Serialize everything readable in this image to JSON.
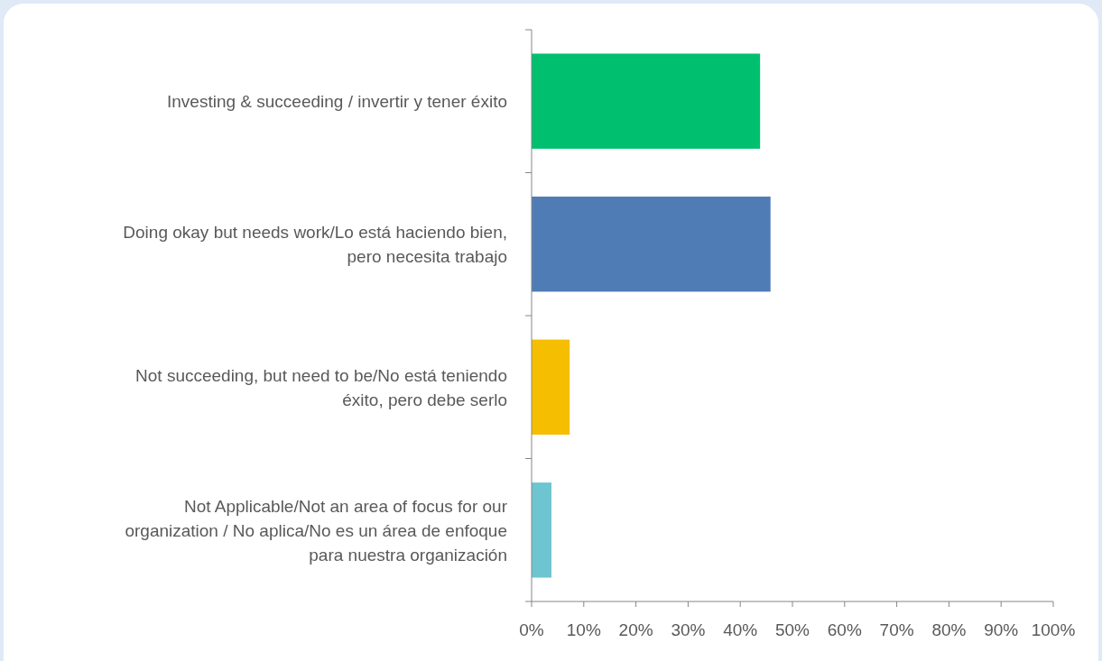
{
  "chart_data": {
    "type": "bar",
    "orientation": "horizontal",
    "categories": [
      "Investing & succeeding / invertir y tener éxito",
      "Doing okay but needs work/Lo está haciendo bien, pero necesita trabajo",
      "Not succeeding, but need to be/No está teniendo éxito, pero debe serlo",
      "Not Applicable/Not an area of focus for our organization / No aplica/No es un área de enfoque para nuestra organización"
    ],
    "values": [
      43.8,
      45.8,
      7.3,
      3.8
    ],
    "colors": [
      "#00bf6f",
      "#507cb6",
      "#f5be00",
      "#6cc5d0"
    ],
    "xlim": [
      0,
      100
    ],
    "xticks": [
      {
        "value": 0,
        "label": "0%"
      },
      {
        "value": 10,
        "label": "10%"
      },
      {
        "value": 20,
        "label": "20%"
      },
      {
        "value": 30,
        "label": "30%"
      },
      {
        "value": 40,
        "label": "40%"
      },
      {
        "value": 50,
        "label": "50%"
      },
      {
        "value": 60,
        "label": "60%"
      },
      {
        "value": 70,
        "label": "70%"
      },
      {
        "value": 80,
        "label": "80%"
      },
      {
        "value": 90,
        "label": "90%"
      },
      {
        "value": 100,
        "label": "100%"
      }
    ],
    "grid": false
  }
}
